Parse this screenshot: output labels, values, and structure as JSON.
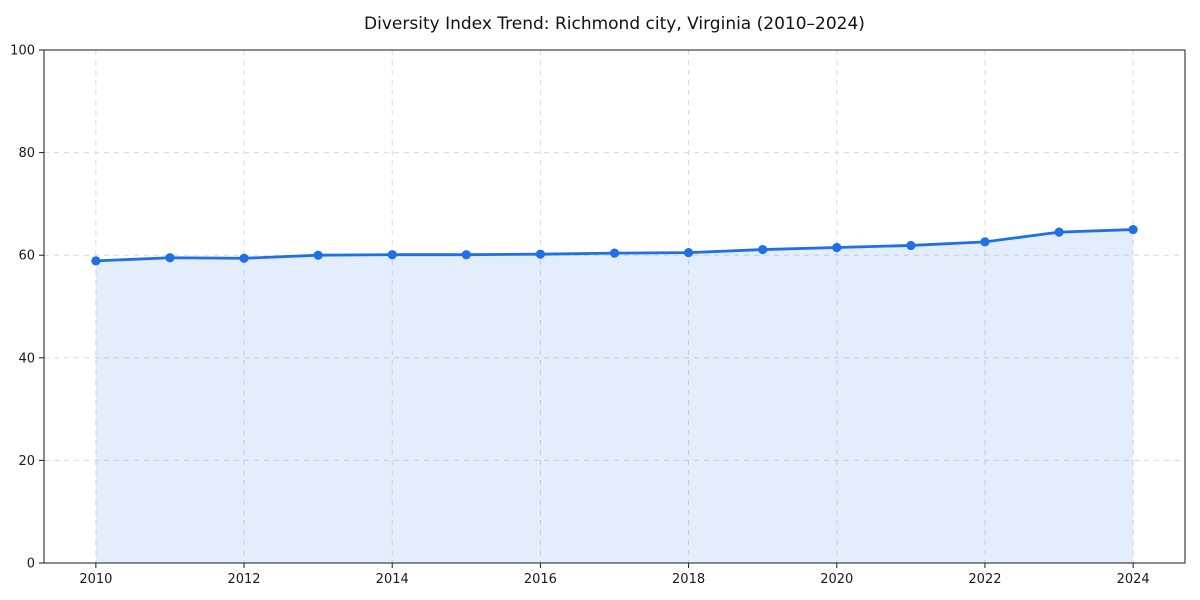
{
  "chart_data": {
    "type": "area",
    "title": "Diversity Index Trend: Richmond city, Virginia (2010–2024)",
    "xlabel": "",
    "ylabel": "",
    "x": [
      2010,
      2011,
      2012,
      2013,
      2014,
      2015,
      2016,
      2017,
      2018,
      2019,
      2020,
      2021,
      2022,
      2023,
      2024
    ],
    "series": [
      {
        "name": "Diversity Index",
        "values": [
          58.9,
          59.5,
          59.4,
          60.0,
          60.1,
          60.1,
          60.2,
          60.4,
          60.5,
          61.1,
          61.5,
          61.9,
          62.6,
          64.5,
          65.0
        ]
      }
    ],
    "xlim": [
      2009.3,
      2024.7
    ],
    "ylim": [
      0,
      100
    ],
    "xticks": [
      2010,
      2012,
      2014,
      2016,
      2018,
      2020,
      2022,
      2024
    ],
    "yticks": [
      0,
      20,
      40,
      60,
      80,
      100
    ],
    "grid": true,
    "grid_style": "dashed",
    "legend_position": "none",
    "line_color": "#1f6fe5",
    "marker_color": "#1f6fe5",
    "fill_color": "#1f6fe5",
    "fill_opacity": 0.12,
    "grid_color": "#dadada",
    "spine_color": "#1a1a1a",
    "tick_label_color": "#1a1a1a",
    "title_color": "#111111",
    "background_color": "#ffffff"
  }
}
